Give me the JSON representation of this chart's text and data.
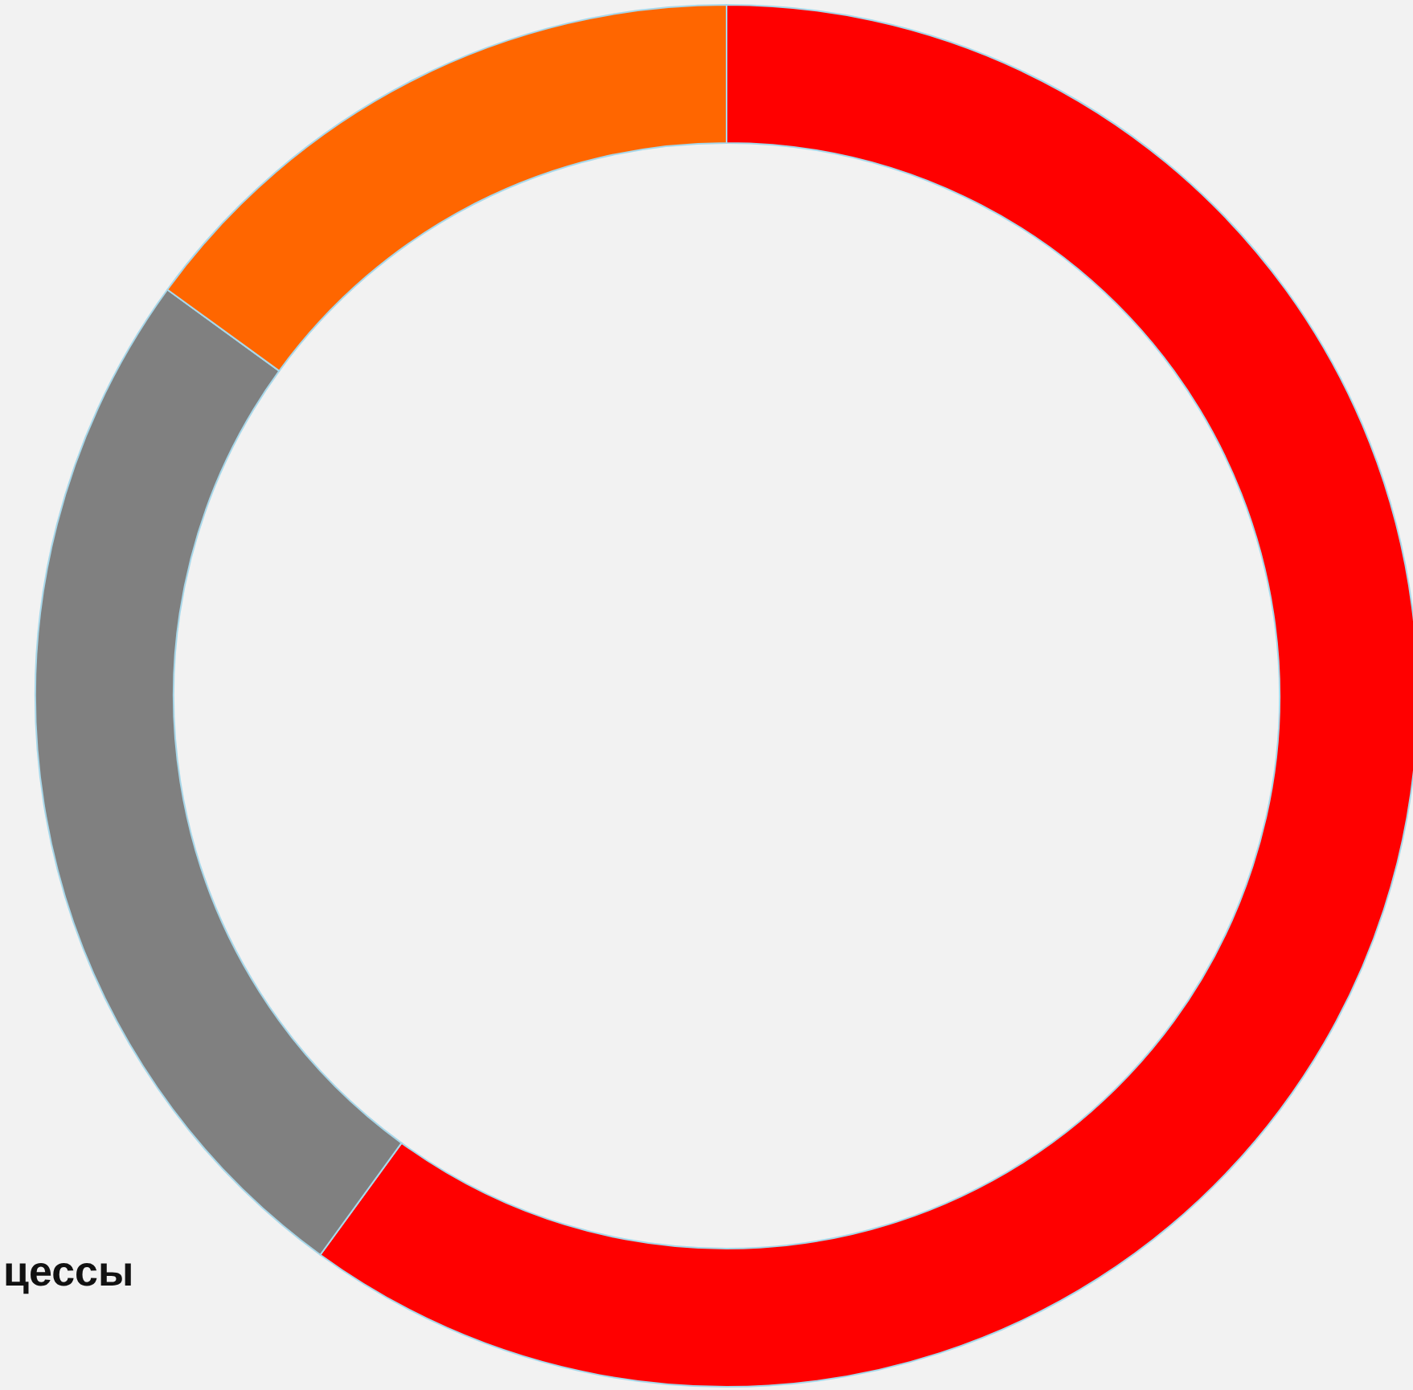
{
  "chart_data": {
    "type": "donut",
    "categories": [
      null,
      null,
      null
    ],
    "values": [
      60,
      25,
      15
    ],
    "colors": [
      "#ff0000",
      "#808080",
      "#ff6600"
    ],
    "annotations": [
      "цессы"
    ]
  }
}
